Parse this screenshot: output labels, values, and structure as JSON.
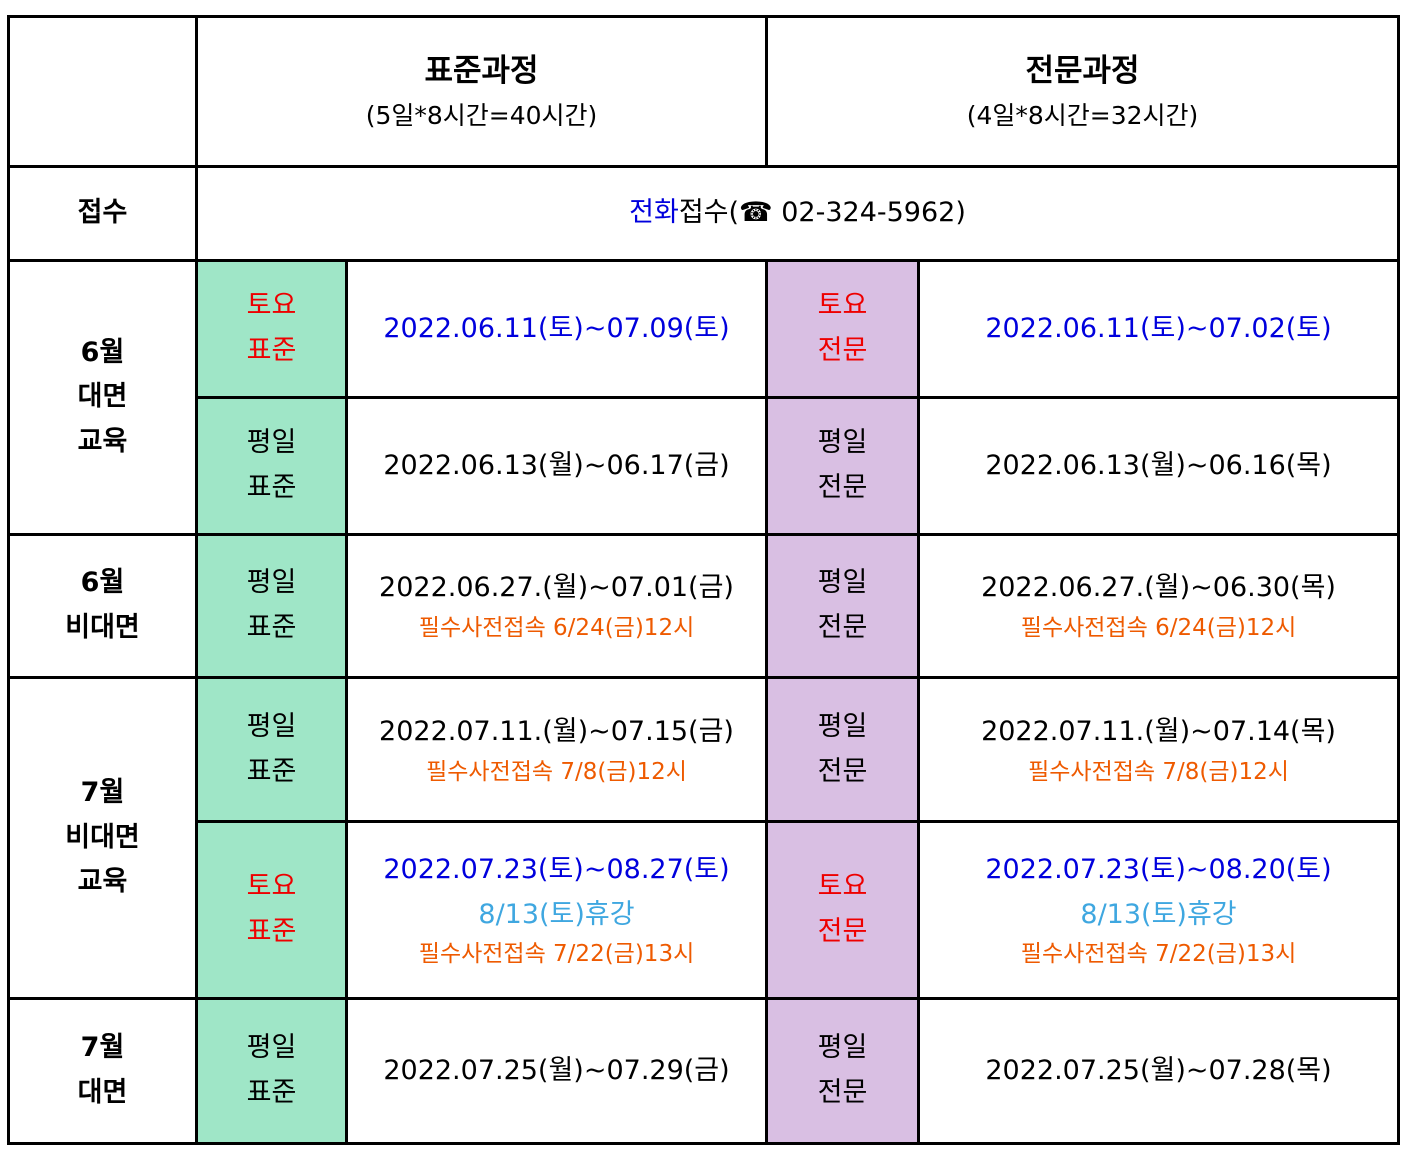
{
  "header": {
    "standard": {
      "title": "표준과정",
      "subtitle": "(5일*8시간=40시간)"
    },
    "expert": {
      "title": "전문과정",
      "subtitle": "(4일*8시간=32시간)"
    }
  },
  "reception": {
    "label": "접수",
    "prefix": "전화",
    "text": "접수(☎ 02-324-5962)"
  },
  "groups": [
    {
      "l1": "6월",
      "l2": "대면",
      "l3": "교육"
    },
    {
      "l1": "6월",
      "l2": "비대면"
    },
    {
      "l1": "7월",
      "l2": "비대면",
      "l3": "교육"
    },
    {
      "l1": "7월",
      "l2": "대면"
    }
  ],
  "rows": [
    {
      "std_type": [
        "토요",
        "표준"
      ],
      "std_date": "2022.06.11(토)~07.09(토)",
      "exp_type": [
        "토요",
        "전문"
      ],
      "exp_date": "2022.06.11(토)~07.02(토)"
    },
    {
      "std_type": [
        "평일",
        "표준"
      ],
      "std_date": "2022.06.13(월)~06.17(금)",
      "exp_type": [
        "평일",
        "전문"
      ],
      "exp_date": "2022.06.13(월)~06.16(목)"
    },
    {
      "std_type": [
        "평일",
        "표준"
      ],
      "std_date": "2022.06.27.(월)~07.01(금)",
      "std_note": "필수사전접속 6/24(금)12시",
      "exp_type": [
        "평일",
        "전문"
      ],
      "exp_date": "2022.06.27.(월)~06.30(목)",
      "exp_note": "필수사전접속 6/24(금)12시"
    },
    {
      "std_type": [
        "평일",
        "표준"
      ],
      "std_date": "2022.07.11.(월)~07.15(금)",
      "std_note": "필수사전접속 7/8(금)12시",
      "exp_type": [
        "평일",
        "전문"
      ],
      "exp_date": "2022.07.11.(월)~07.14(목)",
      "exp_note": "필수사전접속 7/8(금)12시"
    },
    {
      "std_type": [
        "토요",
        "표준"
      ],
      "std_date": "2022.07.23(토)~08.27(토)",
      "std_break": "8/13(토)휴강",
      "std_note": "필수사전접속 7/22(금)13시",
      "exp_type": [
        "토요",
        "전문"
      ],
      "exp_date": "2022.07.23(토)~08.20(토)",
      "exp_break": "8/13(토)휴강",
      "exp_note": "필수사전접속 7/22(금)13시"
    },
    {
      "std_type": [
        "평일",
        "표준"
      ],
      "std_date": "2022.07.25(월)~07.29(금)",
      "exp_type": [
        "평일",
        "전문"
      ],
      "exp_date": "2022.07.25(월)~07.28(목)"
    }
  ],
  "colors": {
    "standard_bg": "#9fe6c7",
    "expert_bg": "#d9bfe3",
    "saturday_label": "#ee0000",
    "saturday_date": "#0000dd",
    "note": "#ee5a00",
    "break": "#3fa7e0"
  }
}
